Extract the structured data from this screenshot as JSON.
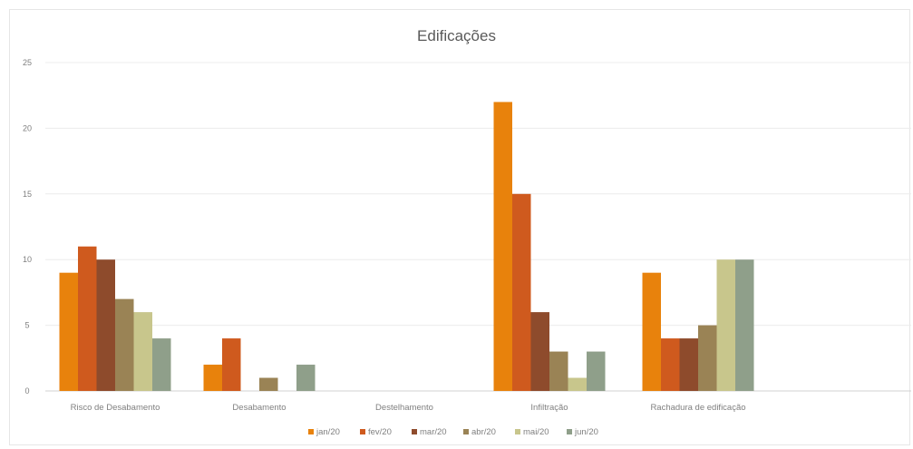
{
  "chart_data": {
    "type": "bar",
    "title": "Edificações",
    "categories": [
      "Risco de Desabamento",
      "Desabamento",
      "Destelhamento",
      "Infiltração",
      "Rachadura de edificação"
    ],
    "series": [
      {
        "name": "jan/20",
        "color": "#e8820c",
        "values": [
          9,
          2,
          0,
          22,
          9
        ]
      },
      {
        "name": "fev/20",
        "color": "#cf5a1e",
        "values": [
          11,
          4,
          0,
          15,
          4
        ]
      },
      {
        "name": "mar/20",
        "color": "#8e4b2c",
        "values": [
          10,
          0,
          0,
          6,
          4
        ]
      },
      {
        "name": "abr/20",
        "color": "#9a8355",
        "values": [
          7,
          1,
          0,
          3,
          5
        ]
      },
      {
        "name": "mai/20",
        "color": "#c8c68c",
        "values": [
          6,
          0,
          0,
          1,
          10
        ]
      },
      {
        "name": "jun/20",
        "color": "#8f9f8a",
        "values": [
          4,
          2,
          0,
          3,
          10
        ]
      }
    ],
    "ylim": [
      0,
      25
    ],
    "yticks": [
      0,
      5,
      10,
      15,
      20,
      25
    ],
    "grid": true,
    "legend_position": "bottom"
  }
}
